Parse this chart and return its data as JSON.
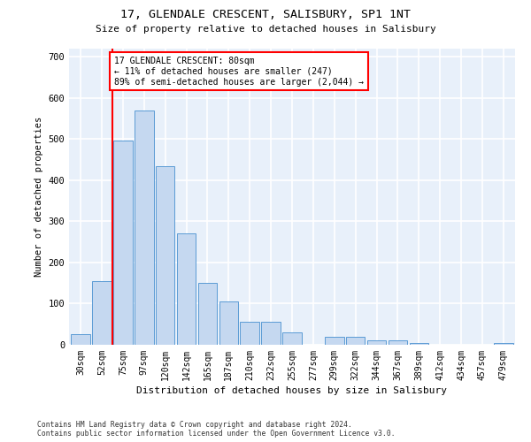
{
  "title1": "17, GLENDALE CRESCENT, SALISBURY, SP1 1NT",
  "title2": "Size of property relative to detached houses in Salisbury",
  "xlabel": "Distribution of detached houses by size in Salisbury",
  "ylabel": "Number of detached properties",
  "categories": [
    "30sqm",
    "52sqm",
    "75sqm",
    "97sqm",
    "120sqm",
    "142sqm",
    "165sqm",
    "187sqm",
    "210sqm",
    "232sqm",
    "255sqm",
    "277sqm",
    "299sqm",
    "322sqm",
    "344sqm",
    "367sqm",
    "389sqm",
    "412sqm",
    "434sqm",
    "457sqm",
    "479sqm"
  ],
  "values": [
    25,
    155,
    497,
    570,
    435,
    270,
    150,
    105,
    55,
    55,
    30,
    0,
    20,
    20,
    10,
    10,
    5,
    0,
    0,
    0,
    5
  ],
  "bar_color": "#c5d8f0",
  "bar_edge_color": "#5b9bd5",
  "background_color": "#e8f0fa",
  "grid_color": "#ffffff",
  "vline_color": "red",
  "annotation_text": "17 GLENDALE CRESCENT: 80sqm\n← 11% of detached houses are smaller (247)\n89% of semi-detached houses are larger (2,044) →",
  "annotation_box_color": "white",
  "annotation_box_edge": "red",
  "ylim": [
    0,
    720
  ],
  "yticks": [
    0,
    100,
    200,
    300,
    400,
    500,
    600,
    700
  ],
  "footnote": "Contains HM Land Registry data © Crown copyright and database right 2024.\nContains public sector information licensed under the Open Government Licence v3.0."
}
